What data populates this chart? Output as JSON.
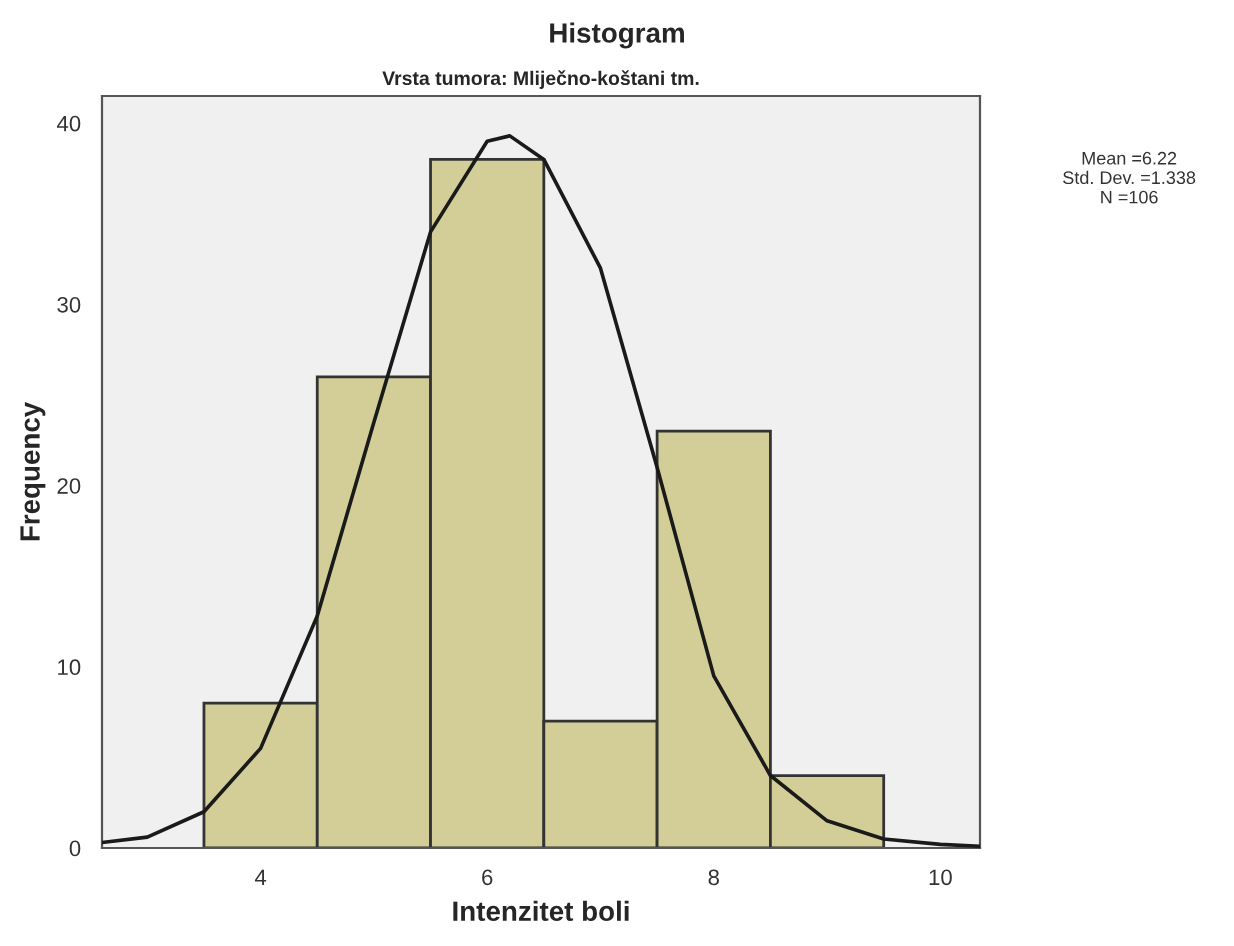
{
  "chart_data": {
    "type": "histogram",
    "title": "Histogram",
    "subtitle": "Vrsta tumora: Mliječno-koštani tm.",
    "xlabel": "Intenzitet boli",
    "ylabel": "Frequency",
    "bins": [
      3.5,
      4.5,
      5.5,
      6.5,
      7.5,
      8.5,
      9.5
    ],
    "values": [
      8,
      26,
      38,
      7,
      23,
      4
    ],
    "color": "#d3ce97",
    "series": [
      {
        "type": "line",
        "color": "#1a1a1a",
        "x": [
          2.6,
          3.0,
          3.5,
          4.0,
          4.5,
          5.0,
          5.5,
          6.0,
          6.2,
          6.5,
          7.0,
          7.5,
          8.0,
          8.5,
          9.0,
          9.5,
          10.0,
          10.35
        ],
        "values": [
          0.3,
          0.6,
          2,
          5.5,
          12.8,
          23.5,
          34,
          39,
          39.3,
          38,
          32,
          21,
          9.5,
          4,
          1.5,
          0.5,
          0.2,
          0.1
        ]
      }
    ],
    "xlim": [
      2.6,
      10.35
    ],
    "ylim": [
      0,
      41.5
    ],
    "xticks": [
      4,
      6,
      8,
      10
    ],
    "yticks": [
      0,
      10,
      20,
      30,
      40
    ],
    "annotations": [
      "Mean =6.22\nStd. Dev. =1.338\nN =106"
    ],
    "grid": false,
    "legend": false
  }
}
